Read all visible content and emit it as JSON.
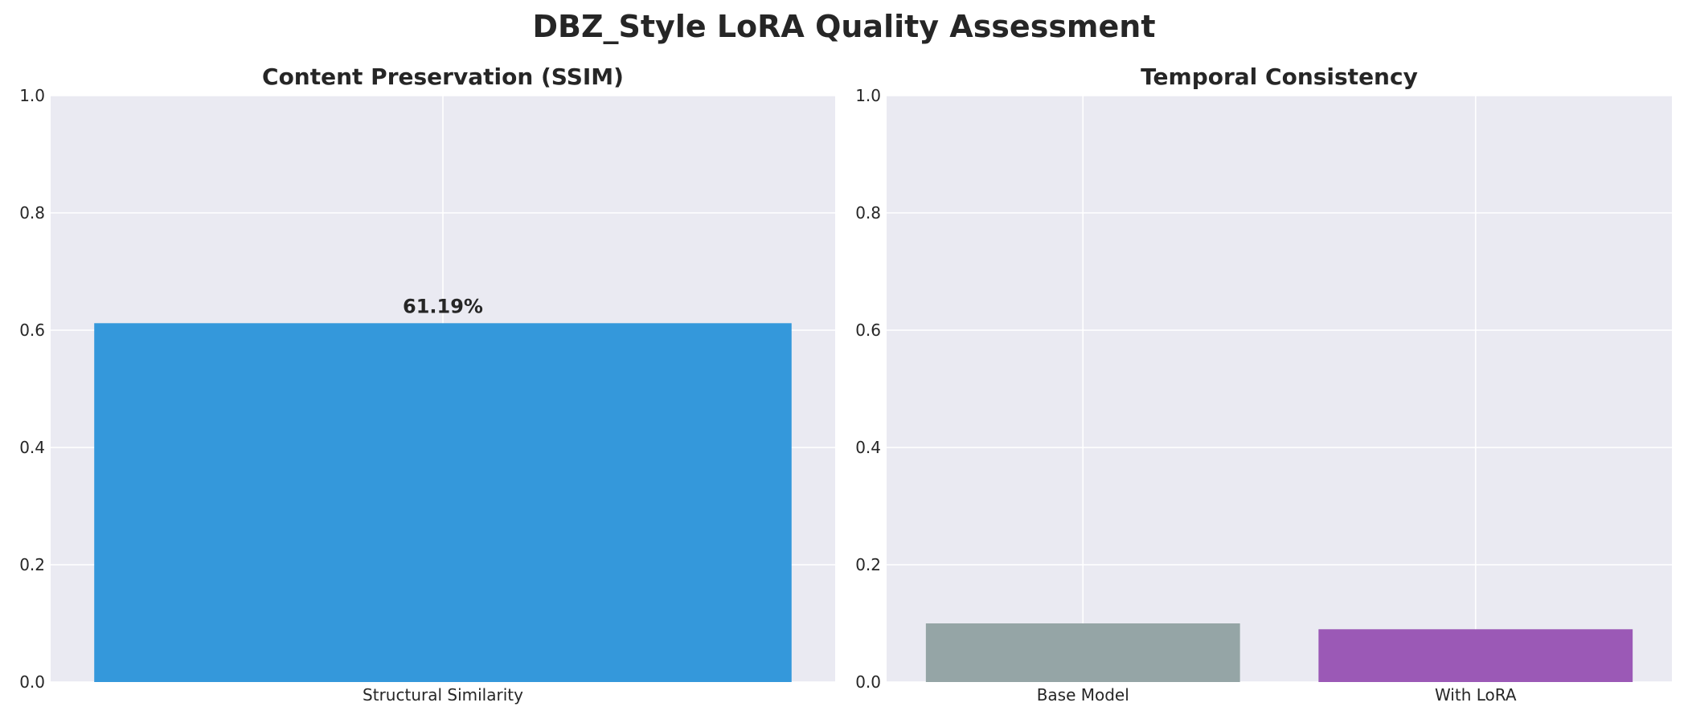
{
  "figure_title": "DBZ_Style LoRA Quality Assessment",
  "chart_data": [
    {
      "type": "bar",
      "title": "Content Preservation (SSIM)",
      "xlabel": "",
      "ylabel": "",
      "categories": [
        "Structural Similarity"
      ],
      "values": [
        0.6119
      ],
      "bar_colors": [
        "#3498db"
      ],
      "data_labels": [
        "61.19%"
      ],
      "ylim": [
        0,
        1.0
      ],
      "yticks": [
        "0.0",
        "0.2",
        "0.4",
        "0.6",
        "0.8",
        "1.0"
      ],
      "grid": true,
      "plot_background": "#eaeaf2"
    },
    {
      "type": "bar",
      "title": "Temporal Consistency",
      "xlabel": "",
      "ylabel": "",
      "categories": [
        "Base Model",
        "With LoRA"
      ],
      "values": [
        0.1,
        0.09
      ],
      "bar_colors": [
        "#95a5a6",
        "#9b59b6"
      ],
      "data_labels": [],
      "ylim": [
        0,
        1.0
      ],
      "yticks": [
        "0.0",
        "0.2",
        "0.4",
        "0.6",
        "0.8",
        "1.0"
      ],
      "grid": true,
      "plot_background": "#eaeaf2"
    }
  ]
}
